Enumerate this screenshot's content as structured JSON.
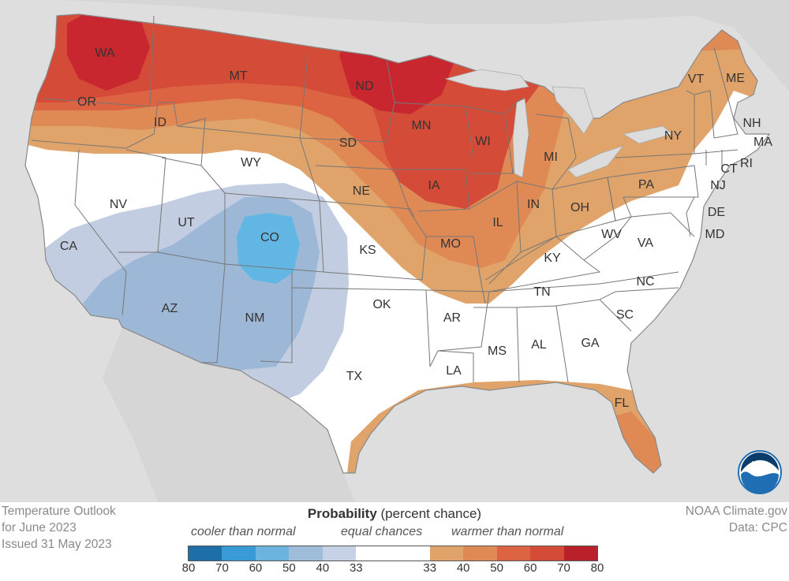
{
  "map": {
    "states": [
      {
        "id": "WA",
        "label": "WA"
      },
      {
        "id": "OR",
        "label": "OR"
      },
      {
        "id": "CA",
        "label": "CA"
      },
      {
        "id": "NV",
        "label": "NV"
      },
      {
        "id": "ID",
        "label": "ID"
      },
      {
        "id": "MT",
        "label": "MT"
      },
      {
        "id": "WY",
        "label": "WY"
      },
      {
        "id": "UT",
        "label": "UT"
      },
      {
        "id": "AZ",
        "label": "AZ"
      },
      {
        "id": "CO",
        "label": "CO"
      },
      {
        "id": "NM",
        "label": "NM"
      },
      {
        "id": "ND",
        "label": "ND"
      },
      {
        "id": "SD",
        "label": "SD"
      },
      {
        "id": "NE",
        "label": "NE"
      },
      {
        "id": "KS",
        "label": "KS"
      },
      {
        "id": "OK",
        "label": "OK"
      },
      {
        "id": "TX",
        "label": "TX"
      },
      {
        "id": "MN",
        "label": "MN"
      },
      {
        "id": "IA",
        "label": "IA"
      },
      {
        "id": "MO",
        "label": "MO"
      },
      {
        "id": "AR",
        "label": "AR"
      },
      {
        "id": "LA",
        "label": "LA"
      },
      {
        "id": "WI",
        "label": "WI"
      },
      {
        "id": "IL",
        "label": "IL"
      },
      {
        "id": "MI",
        "label": "MI"
      },
      {
        "id": "IN",
        "label": "IN"
      },
      {
        "id": "OH",
        "label": "OH"
      },
      {
        "id": "KY",
        "label": "KY"
      },
      {
        "id": "TN",
        "label": "TN"
      },
      {
        "id": "MS",
        "label": "MS"
      },
      {
        "id": "AL",
        "label": "AL"
      },
      {
        "id": "GA",
        "label": "GA"
      },
      {
        "id": "FL",
        "label": "FL"
      },
      {
        "id": "SC",
        "label": "SC"
      },
      {
        "id": "NC",
        "label": "NC"
      },
      {
        "id": "VA",
        "label": "VA"
      },
      {
        "id": "WV",
        "label": "WV"
      },
      {
        "id": "PA",
        "label": "PA"
      },
      {
        "id": "NY",
        "label": "NY"
      },
      {
        "id": "VT",
        "label": "VT"
      },
      {
        "id": "NH",
        "label": "NH"
      },
      {
        "id": "ME",
        "label": "ME"
      },
      {
        "id": "MA",
        "label": "MA"
      },
      {
        "id": "CT",
        "label": "CT"
      },
      {
        "id": "RI",
        "label": "RI"
      },
      {
        "id": "NJ",
        "label": "NJ"
      },
      {
        "id": "DE",
        "label": "DE"
      },
      {
        "id": "MD",
        "label": "MD"
      }
    ],
    "colors": {
      "background": "#e6e6e6",
      "land": "#ffffff",
      "water": "#dcdcdc",
      "border": "#777777",
      "warm33": "#e0a46a",
      "warm40": "#df8a55",
      "warm50": "#dc6442",
      "warm60": "#d44b38",
      "warm70": "#c8272f",
      "cool33": "#c3cde1",
      "cool40": "#9db8d6",
      "cool50": "#62b6e3"
    }
  },
  "caption": {
    "line1": "Temperature Outlook",
    "line2": "for June 2023",
    "line3": "Issued 31 May 2023"
  },
  "credit": {
    "line1": "NOAA Climate.gov",
    "line2": "Data: CPC"
  },
  "legend": {
    "title_bold": "Probability",
    "title_rest": " (percent chance)",
    "cooler": "cooler than normal",
    "equal": "equal chances",
    "warmer": "warmer than normal",
    "ticks": [
      "80",
      "70",
      "60",
      "50",
      "40",
      "33",
      "33",
      "40",
      "50",
      "60",
      "70",
      "80"
    ],
    "colors": {
      "cool": [
        "#1e6fa8",
        "#3a9ad8",
        "#6cb3e0",
        "#9fbcd9",
        "#c6d1e5"
      ],
      "equal": "#ffffff",
      "warm": [
        "#e0a46a",
        "#df8a55",
        "#dc6442",
        "#d44b38",
        "#b8202a"
      ]
    }
  },
  "logo": {
    "text": "NOAA"
  }
}
